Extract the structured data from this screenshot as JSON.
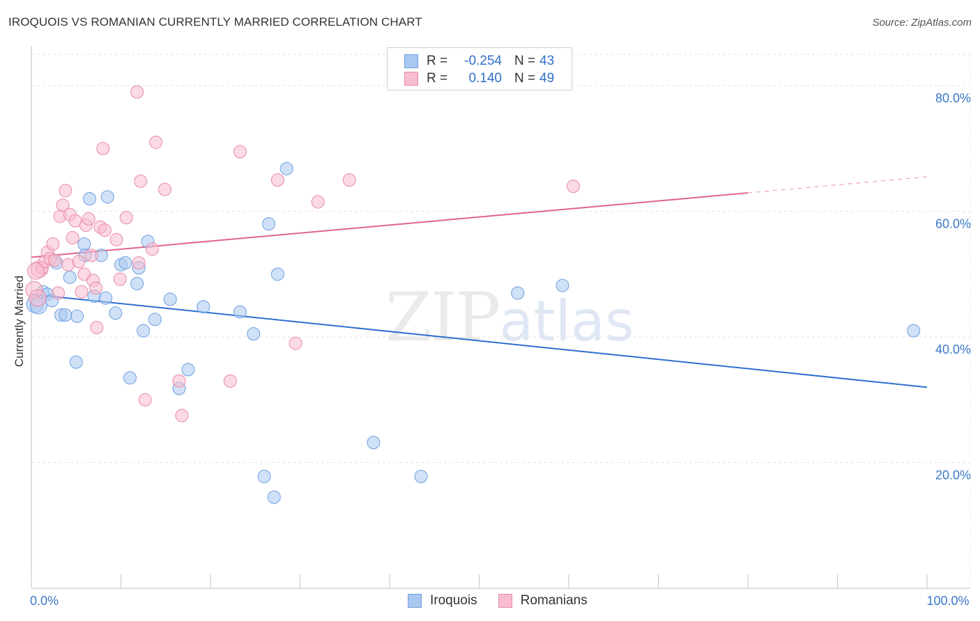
{
  "title": "IROQUOIS VS ROMANIAN CURRENTLY MARRIED CORRELATION CHART",
  "source": "Source: ZipAtlas.com",
  "watermark": {
    "zip": "ZIP",
    "atlas": "atlas"
  },
  "legend_top": [
    {
      "r_label": "R =",
      "r_value": "-0.254",
      "n_label": "N =",
      "n_value": "43"
    },
    {
      "r_label": "R =",
      "r_value": "0.140",
      "n_label": "N =",
      "n_value": "49"
    }
  ],
  "legend_bottom": [
    "Iroquois",
    "Romanians"
  ],
  "colors": {
    "iroquois_fill": "#a9c8f0",
    "iroquois_stroke": "#6d9ee0",
    "iroquois_line": "#2f6fd0",
    "romanian_fill": "#f7bccd",
    "romanian_stroke": "#e88aa6",
    "romanian_line": "#e0638f"
  },
  "chart_data": {
    "type": "scatter",
    "title": "IROQUOIS VS ROMANIAN CURRENTLY MARRIED CORRELATION CHART",
    "xlabel": "",
    "ylabel": "Currently Married",
    "xlim": [
      0,
      100
    ],
    "ylim": [
      0,
      85
    ],
    "x_tick_labels": [
      {
        "value": 0,
        "label": "0.0%"
      },
      {
        "value": 100,
        "label": "100.0%"
      }
    ],
    "y_ticks": [
      {
        "value": 20,
        "label": "20.0%"
      },
      {
        "value": 40,
        "label": "40.0%"
      },
      {
        "value": 60,
        "label": "60.0%"
      },
      {
        "value": 80,
        "label": "80.0%"
      }
    ],
    "series": [
      {
        "name": "Iroquois",
        "r": -0.254,
        "n": 43,
        "trend": {
          "x0": 0,
          "y0": 46.8,
          "x1": 100,
          "y1": 32.0,
          "dash_from": null
        },
        "points": [
          [
            0.4,
            45.2
          ],
          [
            0.8,
            45.0
          ],
          [
            1.3,
            47.2
          ],
          [
            1.8,
            46.8
          ],
          [
            2.3,
            45.8
          ],
          [
            2.8,
            51.8
          ],
          [
            3.3,
            43.5
          ],
          [
            3.8,
            43.5
          ],
          [
            4.3,
            49.5
          ],
          [
            5.1,
            43.3
          ],
          [
            5.0,
            36.0
          ],
          [
            5.9,
            54.8
          ],
          [
            6.0,
            53.0
          ],
          [
            6.5,
            62.0
          ],
          [
            7.0,
            46.5
          ],
          [
            7.8,
            53.0
          ],
          [
            8.3,
            46.2
          ],
          [
            8.5,
            62.3
          ],
          [
            9.4,
            43.8
          ],
          [
            10.0,
            51.5
          ],
          [
            10.5,
            51.8
          ],
          [
            11.0,
            33.5
          ],
          [
            11.8,
            48.5
          ],
          [
            12.0,
            51.0
          ],
          [
            12.5,
            41.0
          ],
          [
            13.0,
            55.2
          ],
          [
            13.8,
            42.8
          ],
          [
            15.5,
            46.0
          ],
          [
            16.5,
            31.8
          ],
          [
            17.5,
            34.8
          ],
          [
            19.2,
            44.8
          ],
          [
            23.3,
            44.0
          ],
          [
            24.8,
            40.5
          ],
          [
            26.0,
            17.8
          ],
          [
            26.5,
            58.0
          ],
          [
            27.1,
            14.5
          ],
          [
            27.5,
            50.0
          ],
          [
            28.5,
            66.8
          ],
          [
            38.2,
            23.2
          ],
          [
            43.5,
            17.8
          ],
          [
            54.3,
            47.0
          ],
          [
            59.3,
            48.2
          ],
          [
            98.5,
            41.0
          ]
        ]
      },
      {
        "name": "Romanians",
        "r": 0.14,
        "n": 49,
        "trend": {
          "x0": 0,
          "y0": 52.7,
          "x1": 100,
          "y1": 65.5,
          "dash_from": 80
        },
        "points": [
          [
            0.3,
            47.5
          ],
          [
            0.7,
            46.2
          ],
          [
            0.9,
            50.8
          ],
          [
            1.2,
            51.0
          ],
          [
            1.5,
            52.0
          ],
          [
            1.8,
            53.5
          ],
          [
            2.1,
            52.5
          ],
          [
            2.4,
            54.8
          ],
          [
            2.6,
            52.2
          ],
          [
            3.0,
            47.0
          ],
          [
            3.2,
            59.2
          ],
          [
            3.5,
            61.0
          ],
          [
            3.8,
            63.3
          ],
          [
            4.1,
            51.5
          ],
          [
            4.3,
            59.5
          ],
          [
            4.6,
            55.8
          ],
          [
            4.9,
            58.5
          ],
          [
            5.3,
            52.0
          ],
          [
            5.6,
            47.2
          ],
          [
            5.9,
            50.0
          ],
          [
            6.1,
            57.8
          ],
          [
            6.4,
            58.8
          ],
          [
            6.7,
            53.0
          ],
          [
            6.9,
            49.0
          ],
          [
            7.2,
            47.8
          ],
          [
            7.3,
            41.5
          ],
          [
            7.7,
            57.5
          ],
          [
            8.0,
            70.0
          ],
          [
            8.2,
            57.0
          ],
          [
            9.5,
            55.5
          ],
          [
            9.9,
            49.2
          ],
          [
            10.6,
            59.0
          ],
          [
            11.8,
            79.0
          ],
          [
            12.0,
            51.8
          ],
          [
            12.2,
            64.8
          ],
          [
            12.7,
            30.0
          ],
          [
            13.5,
            54.0
          ],
          [
            13.9,
            71.0
          ],
          [
            14.9,
            63.5
          ],
          [
            16.5,
            33.0
          ],
          [
            16.8,
            27.5
          ],
          [
            22.2,
            33.0
          ],
          [
            23.3,
            69.5
          ],
          [
            27.5,
            65.0
          ],
          [
            29.5,
            39.0
          ],
          [
            32.0,
            61.5
          ],
          [
            35.5,
            65.0
          ],
          [
            60.5,
            64.0
          ],
          [
            0.5,
            50.5
          ]
        ]
      }
    ]
  }
}
